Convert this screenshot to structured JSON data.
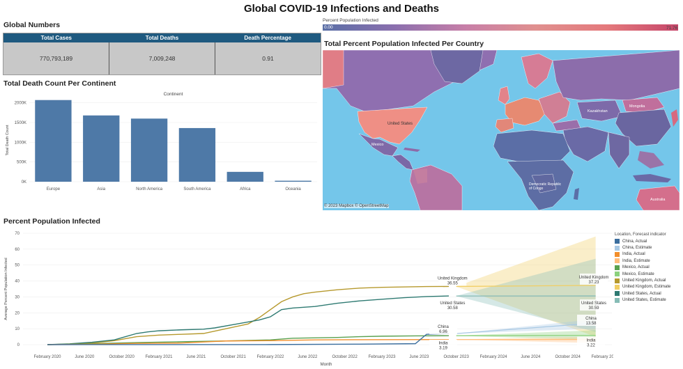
{
  "title": "Global COVID-19 Infections and Deaths",
  "global_numbers": {
    "title": "Global Numbers",
    "headers": [
      "Total Cases",
      "Total Deaths",
      "Death Percentage"
    ],
    "values": [
      "770,793,189",
      "7,009,248",
      "0.91"
    ]
  },
  "map_legend": {
    "label": "Percent Population Infected",
    "min": "0.00",
    "max": "71.76"
  },
  "map": {
    "title": "Total Percent Population Infected Per Country",
    "credit": "© 2023 Mapbox © OpenStreetMap",
    "labels": [
      "United States",
      "Mexico",
      "Mongolia",
      "Kazakhstan",
      "Democratic Republic of Congo",
      "Australia"
    ]
  },
  "colors": {
    "bar": "#4e79a7",
    "kpi_header": "#1f5a80",
    "ocean": "#74c6ea"
  },
  "chart_data": [
    {
      "type": "bar",
      "title": "Total Death Count Per Continent",
      "legend_title": "Continent",
      "ylabel": "Total Death Count",
      "categories": [
        "Europe",
        "Asia",
        "North America",
        "South America",
        "Africa",
        "Oceania"
      ],
      "values": [
        2070000,
        1680000,
        1600000,
        1360000,
        250000,
        25000
      ],
      "ylim": [
        0,
        2100000
      ],
      "yticks": [
        0,
        500000,
        1000000,
        1500000,
        2000000
      ],
      "ytick_labels": [
        "0K",
        "500K",
        "1000K",
        "1500K",
        "2000K"
      ]
    },
    {
      "type": "line",
      "title": "Percent Population Infected",
      "xlabel": "Month",
      "ylabel": "Average Percent Population Infected",
      "ylim": [
        0,
        70
      ],
      "yticks": [
        0,
        10,
        20,
        30,
        40,
        50,
        60,
        70
      ],
      "xticks": [
        "February 2020",
        "June 2020",
        "October 2020",
        "February 2021",
        "June 2021",
        "October 2021",
        "February 2022",
        "June 2022",
        "October 2022",
        "February 2023",
        "June 2023",
        "October 2023",
        "February 2024",
        "June 2024",
        "October 2024",
        "February 2025"
      ],
      "forecast_legend_title": "Location, Forecast indicator",
      "forecast_legend": [
        {
          "label": "China, Actual",
          "color": "#3b6e9e"
        },
        {
          "label": "China, Estimate",
          "color": "#a9c9e4"
        },
        {
          "label": "India, Actual",
          "color": "#f28e2b"
        },
        {
          "label": "India, Estimate",
          "color": "#ffbe7d"
        },
        {
          "label": "Mexico, Actual",
          "color": "#59a14f"
        },
        {
          "label": "Mexico, Estimate",
          "color": "#8cd17d"
        },
        {
          "label": "United Kingdom, Actual",
          "color": "#b6992d"
        },
        {
          "label": "United Kingdom, Estimate",
          "color": "#f1ce63"
        },
        {
          "label": "United States, Actual",
          "color": "#2e7a72"
        },
        {
          "label": "United States, Estimate",
          "color": "#86bcb6"
        }
      ],
      "series": [
        {
          "name": "United Kingdom",
          "color": "#b6992d",
          "values": [
            [
              0,
              0
            ],
            [
              2,
              0.3
            ],
            [
              4,
              1
            ],
            [
              6,
              2.5
            ],
            [
              8,
              5
            ],
            [
              10,
              6
            ],
            [
              12,
              6.5
            ],
            [
              14,
              7
            ],
            [
              16,
              10
            ],
            [
              18,
              13
            ],
            [
              19,
              17
            ],
            [
              20,
              22
            ],
            [
              21,
              27
            ],
            [
              22,
              30
            ],
            [
              23,
              32
            ],
            [
              24,
              33
            ],
            [
              26,
              34.5
            ],
            [
              28,
              35.5
            ],
            [
              30,
              36
            ],
            [
              34,
              36.5
            ],
            [
              36,
              36.55
            ]
          ]
        },
        {
          "name": "United States",
          "color": "#2e7a72",
          "values": [
            [
              0,
              0
            ],
            [
              2,
              0.5
            ],
            [
              4,
              1.5
            ],
            [
              6,
              3
            ],
            [
              7,
              5
            ],
            [
              8,
              7
            ],
            [
              9,
              8
            ],
            [
              10,
              8.7
            ],
            [
              12,
              9.3
            ],
            [
              14,
              9.7
            ],
            [
              15,
              10.5
            ],
            [
              17,
              13
            ],
            [
              19,
              15.5
            ],
            [
              20,
              17.5
            ],
            [
              21,
              22
            ],
            [
              22,
              23
            ],
            [
              24,
              24
            ],
            [
              26,
              26
            ],
            [
              28,
              27.5
            ],
            [
              30,
              28.5
            ],
            [
              32,
              29.5
            ],
            [
              34,
              30.2
            ],
            [
              36,
              30.58
            ]
          ]
        },
        {
          "name": "Mexico",
          "color": "#59a14f",
          "values": [
            [
              0,
              0
            ],
            [
              4,
              0.6
            ],
            [
              8,
              1.3
            ],
            [
              12,
              1.8
            ],
            [
              16,
              2.3
            ],
            [
              20,
              3
            ],
            [
              22,
              4
            ],
            [
              26,
              4.5
            ],
            [
              28,
              5
            ],
            [
              30,
              5.3
            ],
            [
              33,
              5.5
            ],
            [
              36,
              5.6
            ]
          ]
        },
        {
          "name": "India",
          "color": "#f28e2b",
          "values": [
            [
              0,
              0
            ],
            [
              4,
              0.3
            ],
            [
              8,
              0.8
            ],
            [
              12,
              1
            ],
            [
              15,
              2
            ],
            [
              16,
              2.3
            ],
            [
              20,
              2.5
            ],
            [
              24,
              3
            ],
            [
              28,
              3.1
            ],
            [
              32,
              3.15
            ],
            [
              36,
              3.19
            ]
          ]
        },
        {
          "name": "China",
          "color": "#3b6e9e",
          "values": [
            [
              0,
              0
            ],
            [
              20,
              0.05
            ],
            [
              28,
              0.3
            ],
            [
              33,
              0.6
            ],
            [
              34,
              6.5
            ],
            [
              36,
              6.96
            ]
          ]
        }
      ],
      "forecast": [
        {
          "name": "United Kingdom",
          "start": 36.55,
          "end": 37.23,
          "band": [
            [
              36.5,
              36.6
            ],
            [
              5,
              68
            ]
          ],
          "color": "#f1ce63"
        },
        {
          "name": "United States",
          "start": 30.58,
          "end": 30.59,
          "band": [
            [
              30.5,
              30.6
            ],
            [
              8,
              54
            ]
          ],
          "color": "#86bcb6"
        },
        {
          "name": "Mexico",
          "start": 5.6,
          "end": 5.8,
          "band": [
            [
              5.5,
              5.7
            ],
            [
              3,
              9
            ]
          ],
          "color": "#8cd17d"
        },
        {
          "name": "India",
          "start": 3.19,
          "end": 3.22,
          "band": [
            [
              3.1,
              3.3
            ],
            [
              1,
              5
            ]
          ],
          "color": "#ffbe7d"
        },
        {
          "name": "China",
          "start": 6.96,
          "end": 13.58,
          "band": [
            [
              6.9,
              7.0
            ],
            [
              10,
              16
            ]
          ],
          "color": "#a9c9e4"
        }
      ],
      "annotations": [
        {
          "name": "United Kingdom",
          "value": "36.55"
        },
        {
          "name": "United States",
          "value": "30.58"
        },
        {
          "name": "China",
          "value": "6.96"
        },
        {
          "name": "India",
          "value": "3.19"
        },
        {
          "name": "United Kingdom",
          "value": "37.23"
        },
        {
          "name": "United States",
          "value": "30.59"
        },
        {
          "name": "China",
          "value": "13.58"
        },
        {
          "name": "India",
          "value": "3.22"
        }
      ]
    }
  ]
}
